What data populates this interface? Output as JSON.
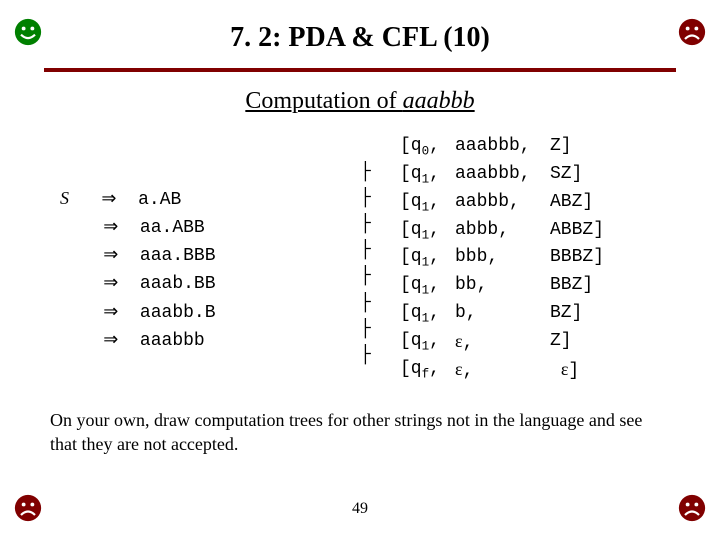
{
  "title": "7. 2:  PDA & CFL (10)",
  "subtitle_plain": "Computation  of ",
  "subtitle_italic": "aaabbb",
  "derivation": {
    "start": "S",
    "arrow": "⇒",
    "steps": [
      "a.AB",
      "aa.ABB",
      "aaa.BBB",
      "aaab.BB",
      "aaabb.B",
      "aaabbb"
    ]
  },
  "turnstile": "├",
  "computation": [
    {
      "state": "[q",
      "sub": "0",
      "comma": ",",
      "input": "aaabbb,",
      "stack": "Z]"
    },
    {
      "state": "[q",
      "sub": "1",
      "comma": ",",
      "input": "aaabbb,",
      "stack": "SZ]"
    },
    {
      "state": "[q",
      "sub": "1",
      "comma": ",",
      "input": "aabbb,",
      "stack": "ABZ]"
    },
    {
      "state": "[q",
      "sub": "1",
      "comma": ",",
      "input": "abbb,",
      "stack": "ABBZ]"
    },
    {
      "state": "[q",
      "sub": "1",
      "comma": ",",
      "input": "bbb,",
      "stack": "BBBZ]"
    },
    {
      "state": "[q",
      "sub": "1",
      "comma": ",",
      "input": "bb,",
      "stack": "BBZ]"
    },
    {
      "state": "[q",
      "sub": "1",
      "comma": ",",
      "input": "b,",
      "stack": "BZ]"
    },
    {
      "state": "[q",
      "sub": "1",
      "comma": ",",
      "input": "ε,",
      "stack": "Z]"
    },
    {
      "state": "[q",
      "sub": "f",
      "comma": ",",
      "input": "ε,",
      "stack": " ε]"
    }
  ],
  "note": "On your own, draw computation trees for other strings not in the language and see that they are not accepted.",
  "pagenum": "49",
  "icon_colors": {
    "happy": "#008000",
    "sad": "#800000"
  }
}
